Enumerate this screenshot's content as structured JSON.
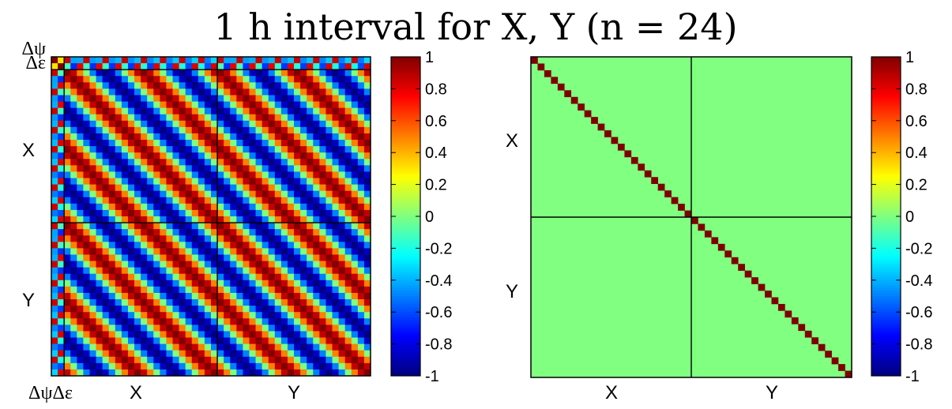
{
  "title": "1 h interval for X, Y (n = 24)",
  "chart_data": [
    {
      "type": "heatmap",
      "panel": "left",
      "description_matrix": "correlation matrix of parameters dpsi, deps, X (24 values), Y (24 values); X-X and Y-Y and X-Y blocks show cos(2*pi*(i-j)/24) periodic correlation",
      "row_labels": [
        "Δψ",
        "Δε",
        "X",
        "Y"
      ],
      "column_labels": [
        "ΔψΔε",
        "X",
        "Y"
      ],
      "n": 24,
      "parameters": [
        "Δψ",
        "Δε",
        "X",
        "Y"
      ],
      "block_sizes": [
        1,
        1,
        24,
        24
      ],
      "colorbar": {
        "min": -1,
        "max": 1,
        "ticks": [
          "1",
          "0.8",
          "0.6",
          "0.4",
          "0.2",
          "0",
          "-0.2",
          "-0.4",
          "-0.6",
          "-0.8",
          "-1"
        ],
        "colormap": "jet"
      }
    },
    {
      "type": "heatmap",
      "panel": "right",
      "description_matrix": "identity matrix: diagonal = 1, off-diagonal = 0",
      "row_labels": [
        "X",
        "Y"
      ],
      "column_labels": [
        "X",
        "Y"
      ],
      "n": 24,
      "diagonal_value": 1,
      "offdiagonal_value": 0,
      "colorbar": {
        "min": -1,
        "max": 1,
        "ticks": [
          "1",
          "0.8",
          "0.6",
          "0.4",
          "0.2",
          "0",
          "-0.2",
          "-0.4",
          "-0.6",
          "-0.8",
          "-1"
        ],
        "colormap": "jet"
      }
    }
  ]
}
